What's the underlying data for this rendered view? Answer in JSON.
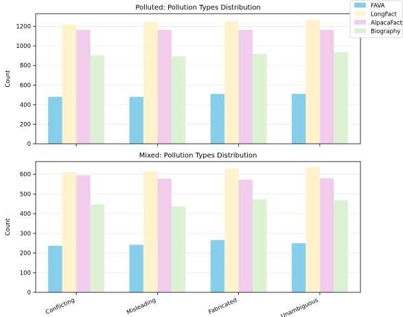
{
  "legend": {
    "placement": "top-right",
    "entries": [
      {
        "name": "FAVA",
        "color": "#87CEEB"
      },
      {
        "name": "LongFact",
        "color": "#FFF3CD"
      },
      {
        "name": "AlpacaFact",
        "color": "#F2CDEB"
      },
      {
        "name": "Biography",
        "color": "#DDF2D4"
      }
    ]
  },
  "chart_data": [
    {
      "type": "bar",
      "title": "Polluted: Pollution Types Distribution",
      "xlabel": "",
      "ylabel": "Count",
      "categories": [
        "Conflicting",
        "Misleading",
        "Fabricated",
        "Unambiguous"
      ],
      "ylim": [
        0,
        1330
      ],
      "yticks": [
        0,
        200,
        400,
        600,
        800,
        1000,
        1200
      ],
      "grid": true,
      "series": [
        {
          "name": "FAVA",
          "values": [
            480,
            480,
            510,
            510
          ]
        },
        {
          "name": "LongFact",
          "values": [
            1220,
            1245,
            1255,
            1270
          ]
        },
        {
          "name": "AlpacaFact",
          "values": [
            1165,
            1165,
            1165,
            1165
          ]
        },
        {
          "name": "Biography",
          "values": [
            905,
            895,
            920,
            935
          ]
        }
      ]
    },
    {
      "type": "bar",
      "title": "Mixed: Pollution Types Distribution",
      "xlabel": "",
      "ylabel": "Count",
      "categories": [
        "Conflicting",
        "Misleading",
        "Fabricated",
        "Unambiguous"
      ],
      "ylim": [
        0,
        665
      ],
      "yticks": [
        0,
        100,
        200,
        300,
        400,
        500,
        600
      ],
      "grid": true,
      "series": [
        {
          "name": "FAVA",
          "values": [
            237,
            242,
            266,
            250
          ]
        },
        {
          "name": "LongFact",
          "values": [
            612,
            615,
            632,
            637
          ]
        },
        {
          "name": "AlpacaFact",
          "values": [
            595,
            578,
            573,
            580
          ]
        },
        {
          "name": "Biography",
          "values": [
            447,
            437,
            474,
            469
          ]
        }
      ]
    }
  ]
}
